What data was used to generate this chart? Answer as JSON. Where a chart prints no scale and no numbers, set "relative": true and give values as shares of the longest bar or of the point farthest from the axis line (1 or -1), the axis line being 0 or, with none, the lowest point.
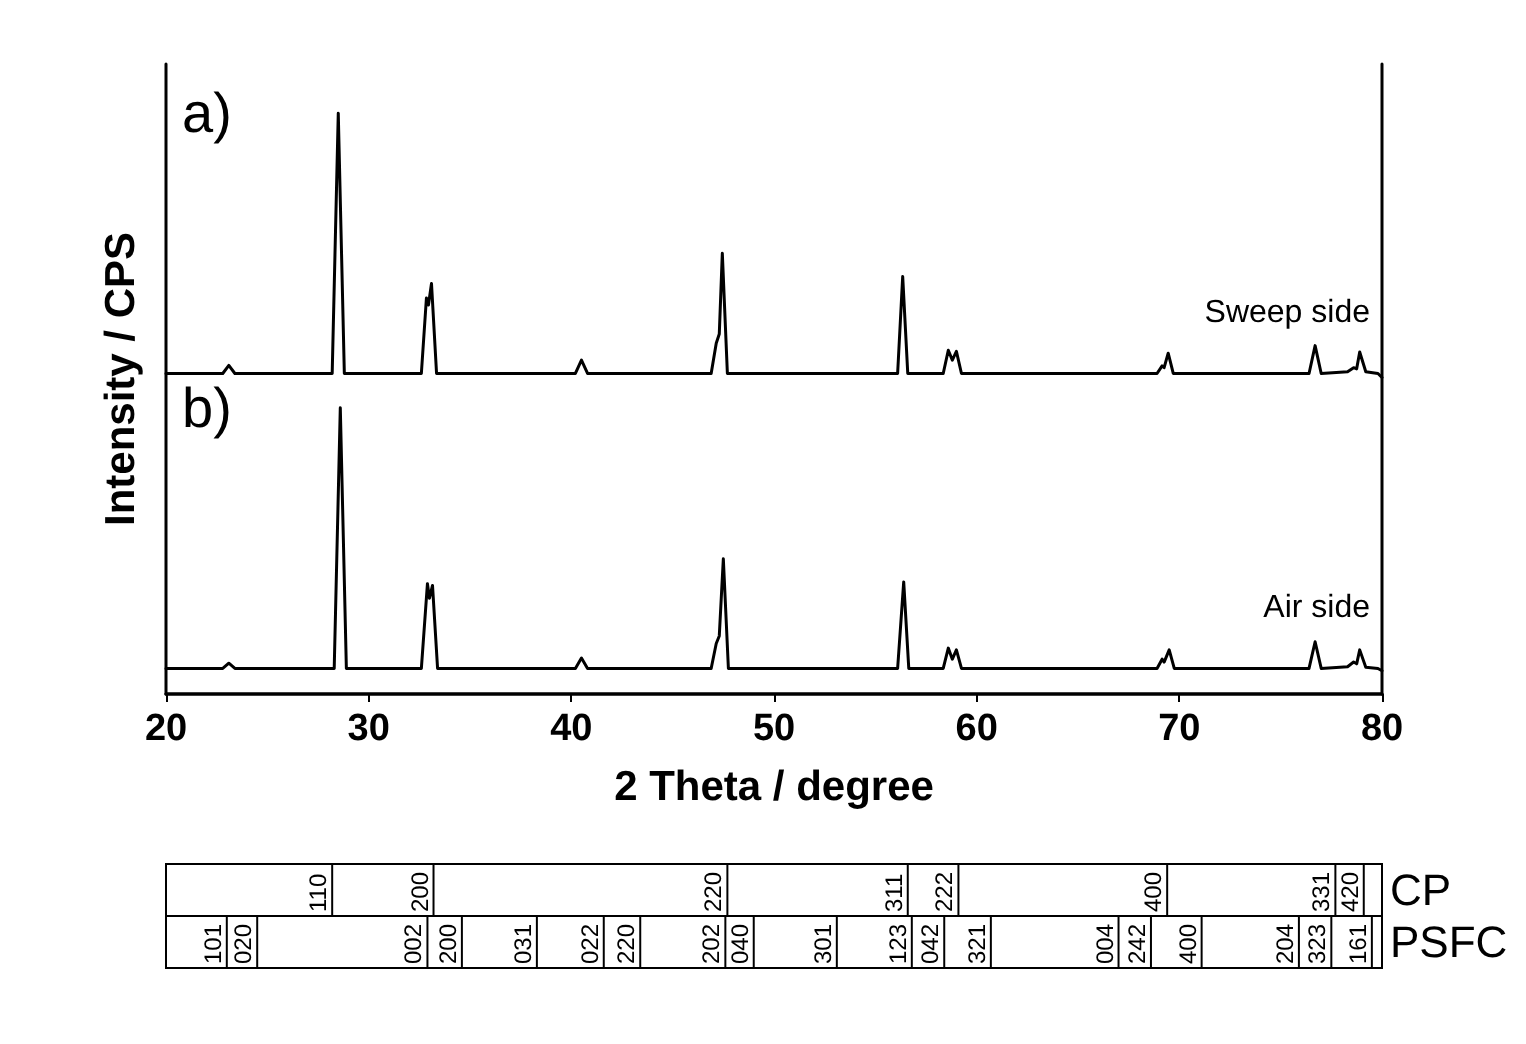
{
  "chart_data": {
    "type": "line",
    "xlabel": "2 Theta / degree",
    "ylabel": "Intensity / CPS",
    "relative": true,
    "xlim": [
      20,
      80
    ],
    "xticks": [
      20,
      30,
      40,
      50,
      60,
      70,
      80
    ],
    "grid": false,
    "legend": false,
    "marker": "none",
    "line_style": "solid",
    "annotations": [
      "a)",
      "b)",
      "CP",
      "110",
      "200",
      "220",
      "311",
      "222",
      "400",
      "331",
      "420",
      "PSFC",
      "101",
      "020",
      "002",
      "200",
      "031",
      "022",
      "220",
      "202",
      "040",
      "301",
      "123",
      "042",
      "321",
      "004",
      "242",
      "400",
      "204",
      "323",
      "161"
    ],
    "series": [
      {
        "name": "Sweep side",
        "color": "#000000",
        "x": [
          20,
          22.8,
          23.1,
          23.4,
          28.2,
          28.5,
          28.8,
          32.6,
          32.85,
          32.95,
          33.1,
          33.35,
          40.2,
          40.5,
          40.8,
          46.9,
          47.15,
          47.3,
          47.45,
          47.7,
          56.1,
          56.35,
          56.6,
          58.35,
          58.6,
          58.8,
          59.0,
          59.25,
          68.9,
          69.15,
          69.25,
          69.45,
          69.7,
          76.4,
          76.7,
          77.0,
          78.3,
          78.6,
          78.75,
          78.9,
          79.2,
          79.8,
          80
        ],
        "values": [
          0.552,
          0.552,
          0.566,
          0.552,
          0.552,
          1.0,
          0.552,
          0.552,
          0.682,
          0.67,
          0.707,
          0.552,
          0.552,
          0.575,
          0.552,
          0.552,
          0.604,
          0.62,
          0.759,
          0.552,
          0.552,
          0.719,
          0.552,
          0.552,
          0.592,
          0.575,
          0.59,
          0.552,
          0.552,
          0.565,
          0.562,
          0.587,
          0.552,
          0.552,
          0.6,
          0.552,
          0.555,
          0.562,
          0.56,
          0.589,
          0.555,
          0.552,
          0.545
        ]
      },
      {
        "name": "Air side",
        "color": "#000000",
        "x": [
          20,
          22.8,
          23.1,
          23.4,
          28.3,
          28.6,
          28.9,
          32.6,
          32.9,
          33.0,
          33.15,
          33.4,
          40.2,
          40.5,
          40.8,
          46.9,
          47.15,
          47.3,
          47.5,
          47.75,
          56.1,
          56.4,
          56.65,
          58.35,
          58.6,
          58.8,
          59.0,
          59.25,
          68.9,
          69.15,
          69.25,
          69.5,
          69.75,
          76.4,
          76.7,
          77.0,
          78.3,
          78.6,
          78.75,
          78.9,
          79.2,
          79.8,
          80
        ],
        "values": [
          0.044,
          0.044,
          0.053,
          0.044,
          0.044,
          0.493,
          0.044,
          0.044,
          0.19,
          0.165,
          0.187,
          0.044,
          0.044,
          0.062,
          0.044,
          0.044,
          0.087,
          0.1,
          0.233,
          0.044,
          0.044,
          0.193,
          0.044,
          0.044,
          0.079,
          0.06,
          0.076,
          0.044,
          0.044,
          0.06,
          0.055,
          0.076,
          0.044,
          0.044,
          0.09,
          0.044,
          0.047,
          0.055,
          0.052,
          0.076,
          0.046,
          0.044,
          0.04
        ]
      }
    ]
  }
}
